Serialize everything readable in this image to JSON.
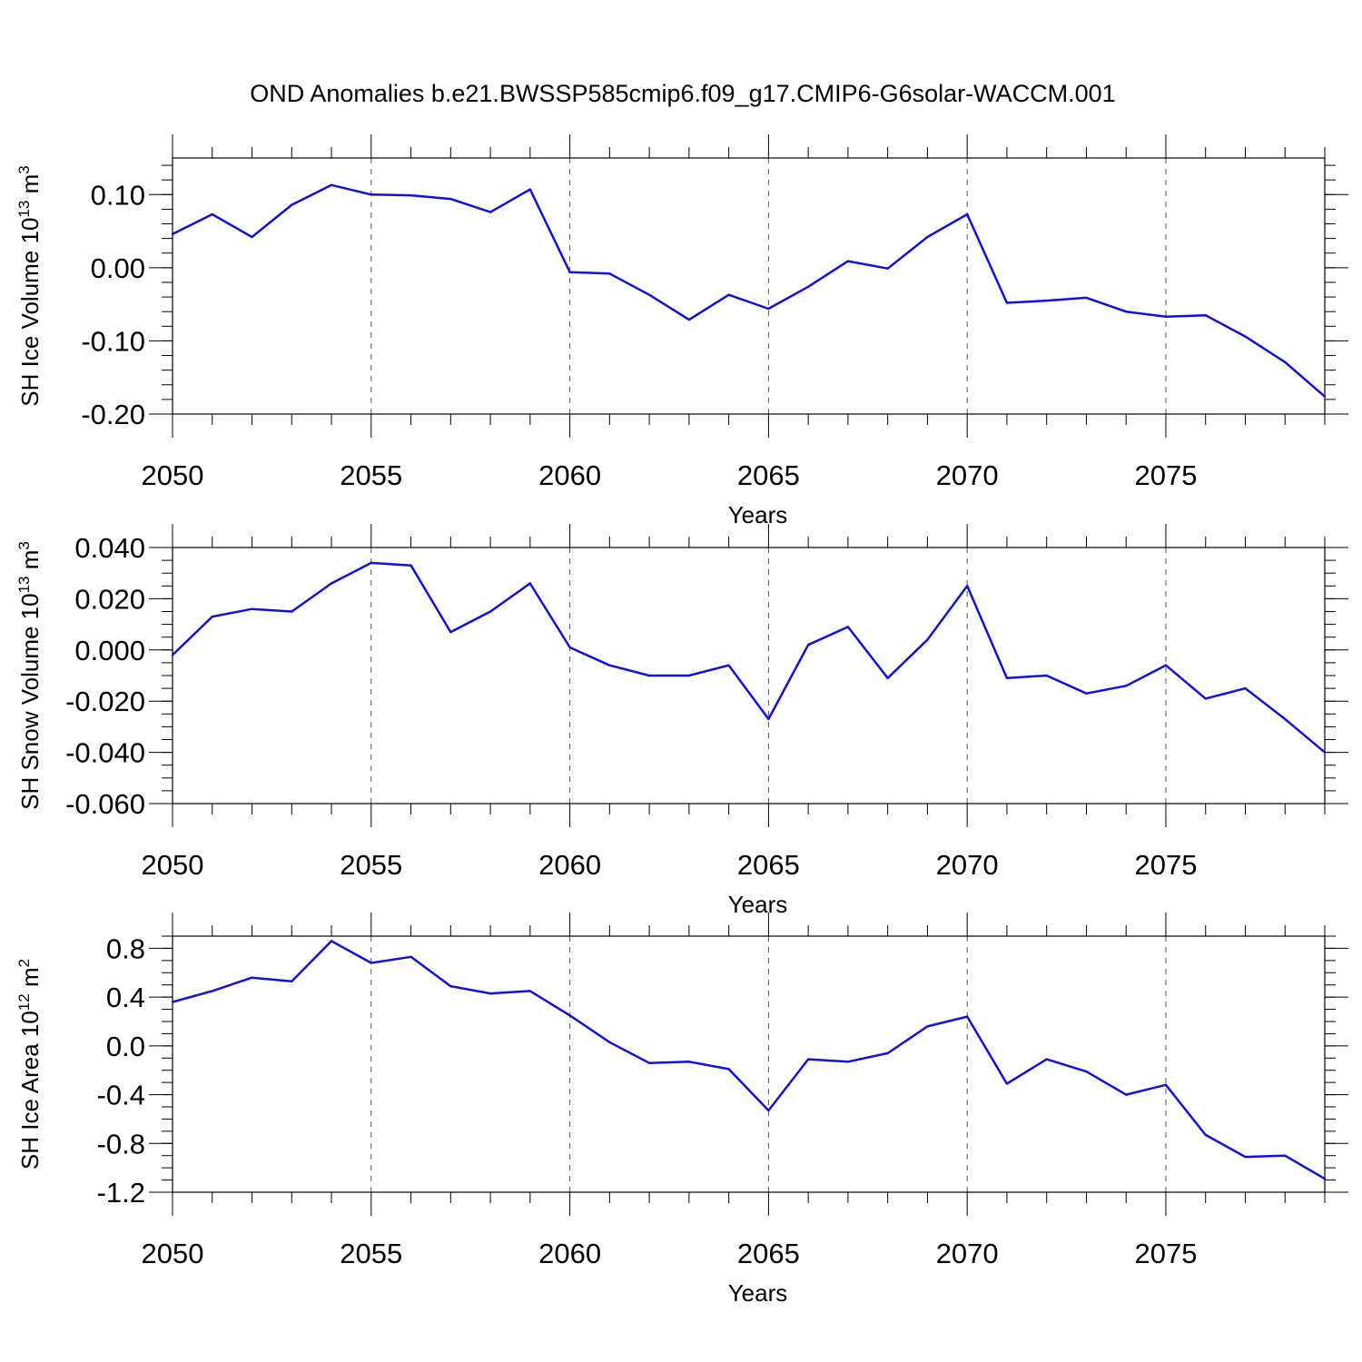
{
  "title": "OND Anomalies b.e21.BWSSP585cmip6.f09_g17.CMIP6-G6solar-WACCM.001",
  "series_color": "#1010e0",
  "chart_data": [
    {
      "type": "line",
      "title": "OND Anomalies b.e21.BWSSP585cmip6.f09_g17.CMIP6-G6solar-WACCM.001",
      "ylabel": "SH Ice Volume 10",
      "ylabel_exp": "13",
      "ylabel_unit": " m",
      "ylabel_unit_exp": "3",
      "xlabel": "Years",
      "xlim": [
        2050,
        2079
      ],
      "ylim": [
        -0.2,
        0.15
      ],
      "yticks": [
        -0.2,
        -0.1,
        0.0,
        0.1
      ],
      "ytick_labels": [
        "-0.20",
        "-0.10",
        "0.00",
        "0.10"
      ],
      "yminor": 0.02,
      "xticks": [
        2050,
        2055,
        2060,
        2065,
        2070,
        2075
      ],
      "xtick_labels": [
        "2050",
        "2055",
        "2060",
        "2065",
        "2070",
        "2075"
      ],
      "grid_x": [
        2055,
        2060,
        2065,
        2070,
        2075
      ],
      "x": [
        2050,
        2051,
        2052,
        2053,
        2054,
        2055,
        2056,
        2057,
        2058,
        2059,
        2060,
        2061,
        2062,
        2063,
        2064,
        2065,
        2066,
        2067,
        2068,
        2069,
        2070,
        2071,
        2072,
        2073,
        2074,
        2075,
        2076,
        2077,
        2078,
        2079
      ],
      "values": [
        0.046,
        0.073,
        0.042,
        0.086,
        0.113,
        0.1,
        0.099,
        0.094,
        0.076,
        0.107,
        -0.006,
        -0.008,
        -0.037,
        -0.071,
        -0.037,
        -0.056,
        -0.026,
        0.009,
        -0.001,
        0.042,
        0.073,
        -0.048,
        -0.045,
        -0.041,
        -0.06,
        -0.067,
        -0.065,
        -0.094,
        -0.129,
        -0.176
      ]
    },
    {
      "type": "line",
      "ylabel": "SH Snow Volume 10",
      "ylabel_exp": "13",
      "ylabel_unit": " m",
      "ylabel_unit_exp": "3",
      "xlabel": "Years",
      "xlim": [
        2050,
        2079
      ],
      "ylim": [
        -0.06,
        0.04
      ],
      "yticks": [
        -0.06,
        -0.04,
        -0.02,
        0.0,
        0.02,
        0.04
      ],
      "ytick_labels": [
        "-0.060",
        "-0.040",
        "-0.020",
        "0.000",
        "0.020",
        "0.040"
      ],
      "yminor": 0.005,
      "xticks": [
        2050,
        2055,
        2060,
        2065,
        2070,
        2075
      ],
      "xtick_labels": [
        "2050",
        "2055",
        "2060",
        "2065",
        "2070",
        "2075"
      ],
      "grid_x": [
        2055,
        2060,
        2065,
        2070,
        2075
      ],
      "x": [
        2050,
        2051,
        2052,
        2053,
        2054,
        2055,
        2056,
        2057,
        2058,
        2059,
        2060,
        2061,
        2062,
        2063,
        2064,
        2065,
        2066,
        2067,
        2068,
        2069,
        2070,
        2071,
        2072,
        2073,
        2074,
        2075,
        2076,
        2077,
        2078,
        2079
      ],
      "values": [
        -0.002,
        0.013,
        0.016,
        0.015,
        0.026,
        0.034,
        0.033,
        0.007,
        0.015,
        0.026,
        0.001,
        -0.006,
        -0.01,
        -0.01,
        -0.006,
        -0.027,
        0.002,
        0.009,
        -0.011,
        0.004,
        0.025,
        -0.011,
        -0.01,
        -0.017,
        -0.014,
        -0.006,
        -0.019,
        -0.015,
        -0.027,
        -0.04
      ]
    },
    {
      "type": "line",
      "ylabel": "SH Ice Area 10",
      "ylabel_exp": "12",
      "ylabel_unit": " m",
      "ylabel_unit_exp": "2",
      "xlabel": "Years",
      "xlim": [
        2050,
        2079
      ],
      "ylim": [
        -1.2,
        0.9
      ],
      "yticks": [
        -1.2,
        -0.8,
        -0.4,
        0.0,
        0.4,
        0.8
      ],
      "ytick_labels": [
        "-1.2",
        "-0.8",
        "-0.4",
        "0.0",
        "0.4",
        "0.8"
      ],
      "yminor": 0.1,
      "xticks": [
        2050,
        2055,
        2060,
        2065,
        2070,
        2075
      ],
      "xtick_labels": [
        "2050",
        "2055",
        "2060",
        "2065",
        "2070",
        "2075"
      ],
      "grid_x": [
        2055,
        2060,
        2065,
        2070,
        2075
      ],
      "x": [
        2050,
        2051,
        2052,
        2053,
        2054,
        2055,
        2056,
        2057,
        2058,
        2059,
        2060,
        2061,
        2062,
        2063,
        2064,
        2065,
        2066,
        2067,
        2068,
        2069,
        2070,
        2071,
        2072,
        2073,
        2074,
        2075,
        2076,
        2077,
        2078,
        2079
      ],
      "values": [
        0.36,
        0.45,
        0.56,
        0.53,
        0.86,
        0.68,
        0.73,
        0.49,
        0.43,
        0.45,
        0.25,
        0.03,
        -0.14,
        -0.13,
        -0.19,
        -0.53,
        -0.11,
        -0.13,
        -0.06,
        0.16,
        0.24,
        -0.31,
        -0.11,
        -0.21,
        -0.4,
        -0.32,
        -0.73,
        -0.91,
        -0.9,
        -1.09
      ]
    }
  ]
}
